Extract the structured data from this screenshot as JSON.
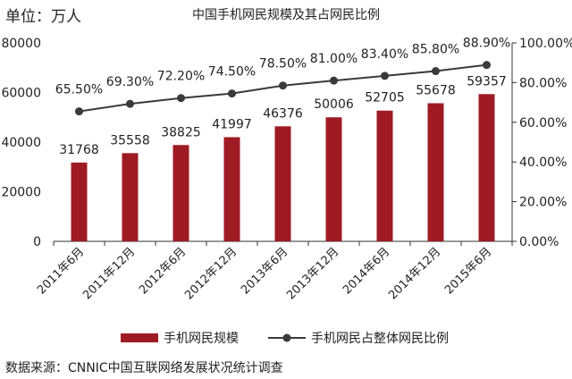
{
  "unit_label": "单位：万人",
  "source": "数据来源：CNNIC中国互联网络发展状况统计调查",
  "colors": {
    "bar": "#9E1B24",
    "line": "#3a3a3a",
    "axis": "#333333"
  },
  "chart_data": {
    "type": "bar",
    "title": "中国手机网民规模及其占网民比例",
    "categories": [
      "2011年6月",
      "2011年12月",
      "2012年6月",
      "2012年12月",
      "2013年6月",
      "2013年12月",
      "2014年6月",
      "2014年12月",
      "2015年6月"
    ],
    "series": [
      {
        "name": "手机网民规模",
        "type": "bar",
        "axis": "left",
        "values": [
          31768,
          35558,
          38825,
          41997,
          46376,
          50006,
          52705,
          55678,
          59357
        ],
        "labels": [
          "31768",
          "35558",
          "38825",
          "41997",
          "46376",
          "50006",
          "52705",
          "55678",
          "59357"
        ]
      },
      {
        "name": "手机网民占整体网民比例",
        "type": "line",
        "axis": "right",
        "values": [
          65.5,
          69.3,
          72.2,
          74.5,
          78.5,
          81.0,
          83.4,
          85.8,
          88.9
        ],
        "labels": [
          "65.50%",
          "69.30%",
          "72.20%",
          "74.50%",
          "78.50%",
          "81.00%",
          "83.40%",
          "85.80%",
          "88.90%"
        ]
      }
    ],
    "y_left": {
      "lim": [
        0,
        80000
      ],
      "ticks": [
        "0",
        "20000",
        "40000",
        "60000",
        "80000"
      ]
    },
    "y_right": {
      "lim": [
        0,
        100
      ],
      "ticks": [
        "0.00%",
        "20.00%",
        "40.00%",
        "60.00%",
        "80.00%",
        "100.00%"
      ]
    },
    "legend_position": "bottom",
    "grid": false
  }
}
